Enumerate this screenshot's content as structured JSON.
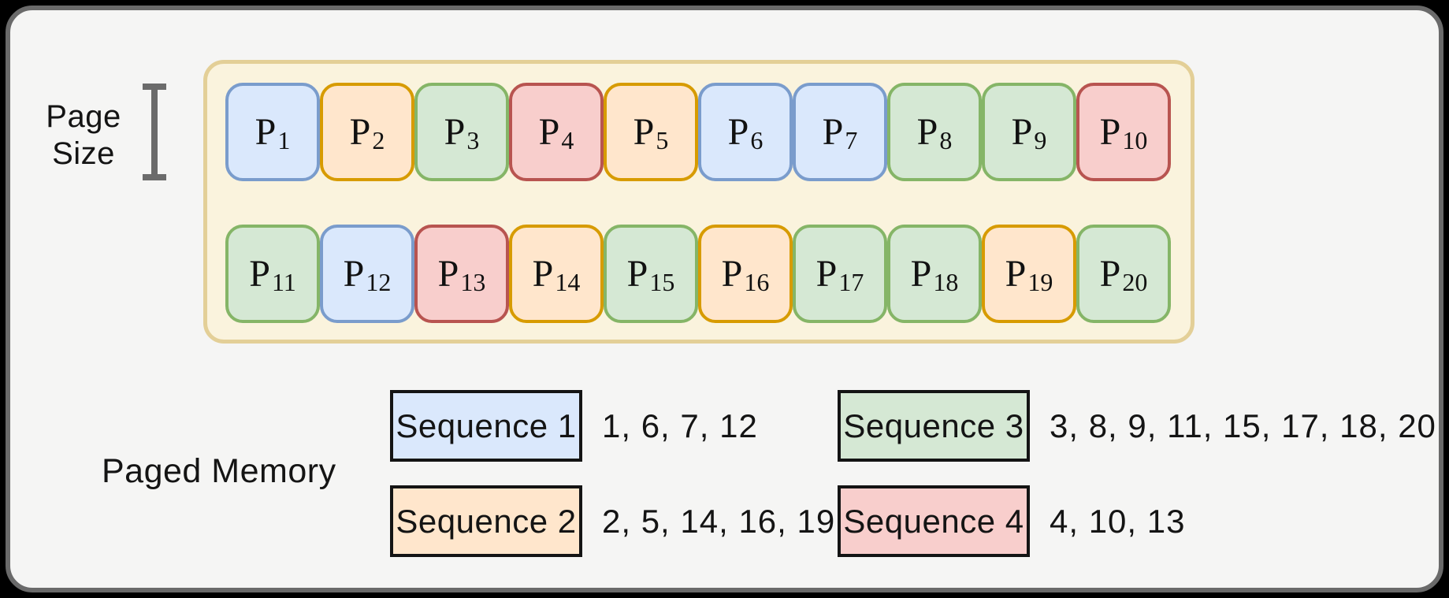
{
  "diagram": {
    "page_size_label_lines": [
      "Page",
      "Size"
    ],
    "paged_memory_label": "Paged Memory",
    "pages": [
      {
        "label": "P",
        "subscript": "1",
        "sequence": 1
      },
      {
        "label": "P",
        "subscript": "2",
        "sequence": 2
      },
      {
        "label": "P",
        "subscript": "3",
        "sequence": 3
      },
      {
        "label": "P",
        "subscript": "4",
        "sequence": 4
      },
      {
        "label": "P",
        "subscript": "5",
        "sequence": 2
      },
      {
        "label": "P",
        "subscript": "6",
        "sequence": 1
      },
      {
        "label": "P",
        "subscript": "7",
        "sequence": 1
      },
      {
        "label": "P",
        "subscript": "8",
        "sequence": 3
      },
      {
        "label": "P",
        "subscript": "9",
        "sequence": 3
      },
      {
        "label": "P",
        "subscript": "10",
        "sequence": 4
      },
      {
        "label": "P",
        "subscript": "11",
        "sequence": 3
      },
      {
        "label": "P",
        "subscript": "12",
        "sequence": 1
      },
      {
        "label": "P",
        "subscript": "13",
        "sequence": 4
      },
      {
        "label": "P",
        "subscript": "14",
        "sequence": 2
      },
      {
        "label": "P",
        "subscript": "15",
        "sequence": 3
      },
      {
        "label": "P",
        "subscript": "16",
        "sequence": 2
      },
      {
        "label": "P",
        "subscript": "17",
        "sequence": 3
      },
      {
        "label": "P",
        "subscript": "18",
        "sequence": 3
      },
      {
        "label": "P",
        "subscript": "19",
        "sequence": 2
      },
      {
        "label": "P",
        "subscript": "20",
        "sequence": 3
      }
    ],
    "sequences": [
      {
        "label": "Sequence 1",
        "color_key": "blue",
        "page_numbers": "1, 6, 7, 12"
      },
      {
        "label": "Sequence 2",
        "color_key": "orange",
        "page_numbers": "2, 5, 14, 16, 19"
      },
      {
        "label": "Sequence 3",
        "color_key": "green",
        "page_numbers": "3, 8, 9, 11, 15, 17, 18, 20"
      },
      {
        "label": "Sequence 4",
        "color_key": "red",
        "page_numbers": "4, 10, 13"
      }
    ],
    "sequence_color_map": {
      "1": "blue",
      "2": "orange",
      "3": "green",
      "4": "red"
    },
    "colors": {
      "blue": {
        "fill": "#dae8fc",
        "stroke": "#7a9ccc"
      },
      "orange": {
        "fill": "#ffe6cc",
        "stroke": "#d79b00"
      },
      "green": {
        "fill": "#d5e8d4",
        "stroke": "#85b567"
      },
      "red": {
        "fill": "#f8cecc",
        "stroke": "#b85450"
      },
      "container": {
        "fill": "#faf3dd",
        "stroke": "#e3cf97"
      }
    }
  }
}
